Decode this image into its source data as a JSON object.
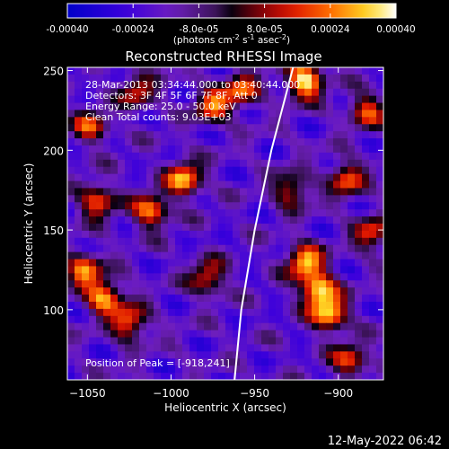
{
  "colorbar": {
    "tick_labels": [
      "-0.00040",
      "-0.00024",
      "-8.0e-05",
      "8.0e-05",
      "0.00024",
      "0.00040"
    ],
    "range": [
      -0.0004,
      0.0004
    ],
    "units_prefix": "(photons cm",
    "units_exp1": "-2",
    "units_mid": " s",
    "units_exp2": "-1",
    "units_mid2": " asec",
    "units_exp3": "-2",
    "units_suffix": ")"
  },
  "chart_data": {
    "type": "heatmap",
    "title": "Reconstructed RHESSI Image",
    "xlabel": "Heliocentric X (arcsec)",
    "ylabel": "Heliocentric Y (arcsec)",
    "xlim": [
      -1062,
      -873
    ],
    "ylim": [
      56,
      252
    ],
    "x_ticks": [
      -1050,
      -1000,
      -950,
      -900
    ],
    "y_ticks": [
      100,
      150,
      200,
      250
    ],
    "x_tick_labels": [
      "−1050",
      "−1000",
      "−950",
      "−900"
    ],
    "y_tick_labels": [
      "100",
      "150",
      "200",
      "250"
    ],
    "annotations": [
      "28-Mar-2013 03:34:44.000 to 03:40:44.000",
      "Detectors: 3F 4F 5F 6F 7F 8F, Att 0",
      "Energy Range: 25.0 - 50.0 keV",
      "Clean    Total counts: 9.03E+03"
    ],
    "peak_label": "Position of Peak = [-918,241]",
    "peak": [
      -918,
      241
    ],
    "limb_curve": [
      [
        -962,
        56
      ],
      [
        -958,
        100
      ],
      [
        -950,
        150
      ],
      [
        -940,
        200
      ],
      [
        -927,
        252
      ]
    ],
    "bright_sources": [
      {
        "x": -920,
        "y": 243,
        "v": 0.0004
      },
      {
        "x": -912,
        "y": 112,
        "v": 0.00036
      },
      {
        "x": -905,
        "y": 97,
        "v": 0.0003
      },
      {
        "x": -920,
        "y": 130,
        "v": 0.00032
      },
      {
        "x": -992,
        "y": 182,
        "v": 0.0003
      },
      {
        "x": -1040,
        "y": 108,
        "v": 0.0003
      },
      {
        "x": -1025,
        "y": 92,
        "v": 0.00024
      },
      {
        "x": -1052,
        "y": 125,
        "v": 0.00024
      },
      {
        "x": -1012,
        "y": 162,
        "v": 0.00026
      },
      {
        "x": -1044,
        "y": 168,
        "v": 0.00022
      },
      {
        "x": -975,
        "y": 228,
        "v": 0.00022
      },
      {
        "x": -958,
        "y": 238,
        "v": 0.0002
      },
      {
        "x": -928,
        "y": 175,
        "v": 0.00016
      },
      {
        "x": -895,
        "y": 182,
        "v": 0.0002
      },
      {
        "x": -883,
        "y": 225,
        "v": 0.00018
      },
      {
        "x": -978,
        "y": 120,
        "v": 0.00018
      },
      {
        "x": -1048,
        "y": 215,
        "v": 0.00016
      },
      {
        "x": -880,
        "y": 148,
        "v": 0.00016
      },
      {
        "x": -1020,
        "y": 237,
        "v": 0.00014
      },
      {
        "x": -893,
        "y": 68,
        "v": 0.00018
      }
    ],
    "colors": {
      "background": "#000000",
      "text": "#ffffff",
      "limb": "#ffffff"
    }
  },
  "footer": {
    "timestamp": "12-May-2022 06:42"
  }
}
